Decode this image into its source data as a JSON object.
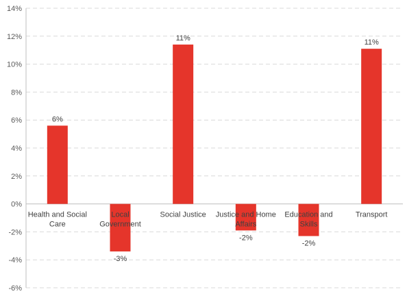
{
  "chart_data": {
    "type": "bar",
    "title": "",
    "xlabel": "",
    "ylabel": "",
    "categories": [
      [
        "Health and Social",
        "Care"
      ],
      [
        "Local",
        "Government"
      ],
      [
        "Social Justice"
      ],
      [
        "Justice and Home",
        "Affairs"
      ],
      [
        "Education and",
        "Skills"
      ],
      [
        "Transport"
      ]
    ],
    "values": [
      5.6,
      -3.4,
      11.4,
      -1.9,
      -2.3,
      11.1
    ],
    "data_labels": [
      "6%",
      "-3%",
      "11%",
      "-2%",
      "-2%",
      "11%"
    ],
    "ylim": [
      -6,
      14
    ],
    "yticks": [
      -6,
      -4,
      -2,
      0,
      2,
      4,
      6,
      8,
      10,
      12,
      14
    ],
    "ytick_labels": [
      "-6%",
      "-4%",
      "-2%",
      "0%",
      "2%",
      "4%",
      "6%",
      "8%",
      "10%",
      "12%",
      "14%"
    ],
    "grid": true,
    "legend": "none",
    "bar_color": "#e5352b"
  }
}
